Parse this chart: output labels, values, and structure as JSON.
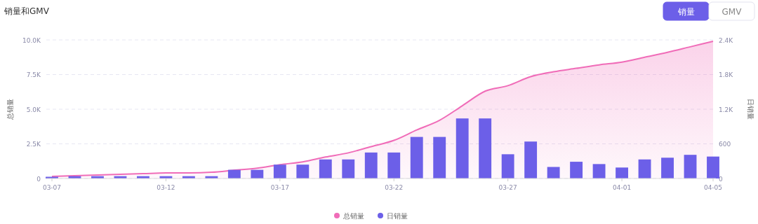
{
  "chart_data": {
    "type": "bar",
    "title": "销量和GMV",
    "ylabel": "总销量",
    "y2label": "日销量",
    "categories": [
      "03-07",
      null,
      null,
      null,
      null,
      "03-12",
      null,
      null,
      null,
      null,
      "03-17",
      null,
      null,
      null,
      null,
      "03-22",
      null,
      null,
      null,
      null,
      "03-27",
      null,
      null,
      null,
      null,
      "04-01",
      null,
      null,
      null,
      "04-05"
    ],
    "series": [
      {
        "name": "总销量",
        "type": "area",
        "color": "#f06cb8",
        "values": [
          150,
          200,
          250,
          300,
          350,
          400,
          400,
          450,
          600,
          750,
          1000,
          1200,
          1550,
          1850,
          2300,
          2750,
          3500,
          4200,
          5250,
          6300,
          6700,
          7350,
          7700,
          7950,
          8200,
          8400,
          8750,
          9100,
          9500,
          9900
        ]
      },
      {
        "name": "日销量",
        "axis": "y2",
        "color": "#6c5fe8",
        "values": [
          30,
          40,
          40,
          40,
          40,
          40,
          40,
          40,
          150,
          150,
          240,
          240,
          330,
          330,
          450,
          450,
          720,
          720,
          1040,
          1040,
          420,
          640,
          200,
          290,
          250,
          190,
          330,
          360,
          410,
          380
        ]
      }
    ],
    "ylim": [
      0,
      10000
    ],
    "yticks": [
      {
        "value": 0,
        "label": "0"
      },
      {
        "value": 2500,
        "label": "2.5K"
      },
      {
        "value": 5000,
        "label": "5.0K"
      },
      {
        "value": 7500,
        "label": "7.5K"
      },
      {
        "value": 10000,
        "label": "10.0K"
      }
    ],
    "y2lim": [
      0,
      2400
    ],
    "y2ticks": [
      0,
      600,
      {
        "value": 1200,
        "label": "1.2K"
      },
      {
        "value": 1800,
        "label": "1.8K"
      },
      {
        "value": 2400,
        "label": "2.4K"
      }
    ],
    "grid": "y",
    "legend": "bottom",
    "annotations": [
      "销量",
      "GMV"
    ]
  }
}
